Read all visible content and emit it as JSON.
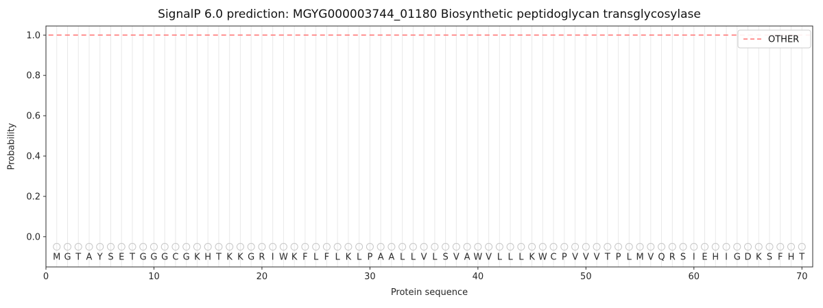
{
  "chart_data": {
    "type": "line",
    "title": "SignalP 6.0 prediction: MGYG000003744_01180 Biosynthetic peptidoglycan transglycosylase",
    "xlabel": "Protein sequence",
    "ylabel": "Probability",
    "xlim": [
      0,
      71
    ],
    "ylim": [
      -0.15,
      1.045
    ],
    "xticks": [
      0,
      10,
      20,
      30,
      40,
      50,
      60,
      70
    ],
    "yticks": [
      0.0,
      0.2,
      0.4,
      0.6,
      0.8,
      1.0
    ],
    "grid": "vertical gridline at every residue position",
    "legend": {
      "position": "upper right",
      "entries": [
        {
          "label": "OTHER",
          "linestyle": "dashed",
          "color": "#ff7070"
        }
      ]
    },
    "sequence": "MGTAYSETGGGCGKHTKKGRIWKFLFLKLPAALLVLSVAWVLLLKWCPVVVTPLMVQRSIEHIGDKSFHT",
    "marker_row_y": -0.05,
    "series": [
      {
        "name": "OTHER",
        "color": "#ff7070",
        "linestyle": "dashed",
        "x": [
          1,
          2,
          3,
          4,
          5,
          6,
          7,
          8,
          9,
          10,
          11,
          12,
          13,
          14,
          15,
          16,
          17,
          18,
          19,
          20,
          21,
          22,
          23,
          24,
          25,
          26,
          27,
          28,
          29,
          30,
          31,
          32,
          33,
          34,
          35,
          36,
          37,
          38,
          39,
          40,
          41,
          42,
          43,
          44,
          45,
          46,
          47,
          48,
          49,
          50,
          51,
          52,
          53,
          54,
          55,
          56,
          57,
          58,
          59,
          60,
          61,
          62,
          63,
          64,
          65,
          66,
          67,
          68,
          69,
          70
        ],
        "values": [
          1.0,
          1.0,
          1.0,
          1.0,
          1.0,
          1.0,
          1.0,
          1.0,
          1.0,
          1.0,
          1.0,
          1.0,
          1.0,
          1.0,
          1.0,
          1.0,
          1.0,
          1.0,
          1.0,
          1.0,
          1.0,
          1.0,
          1.0,
          1.0,
          1.0,
          1.0,
          1.0,
          1.0,
          1.0,
          1.0,
          1.0,
          1.0,
          1.0,
          1.0,
          1.0,
          1.0,
          1.0,
          1.0,
          1.0,
          1.0,
          1.0,
          1.0,
          1.0,
          1.0,
          1.0,
          1.0,
          1.0,
          1.0,
          1.0,
          1.0,
          1.0,
          1.0,
          1.0,
          1.0,
          1.0,
          1.0,
          1.0,
          1.0,
          1.0,
          1.0,
          1.0,
          1.0,
          1.0,
          1.0,
          1.0,
          1.0,
          1.0,
          1.0,
          1.0,
          1.0
        ]
      }
    ],
    "colors": {
      "other_line": "#ff7070",
      "gridline": "#e8e8e8",
      "marker_stroke": "#c6c6c6",
      "spine": "#2b2b2b",
      "text": "#262626",
      "legend_border": "#cccccc"
    }
  }
}
